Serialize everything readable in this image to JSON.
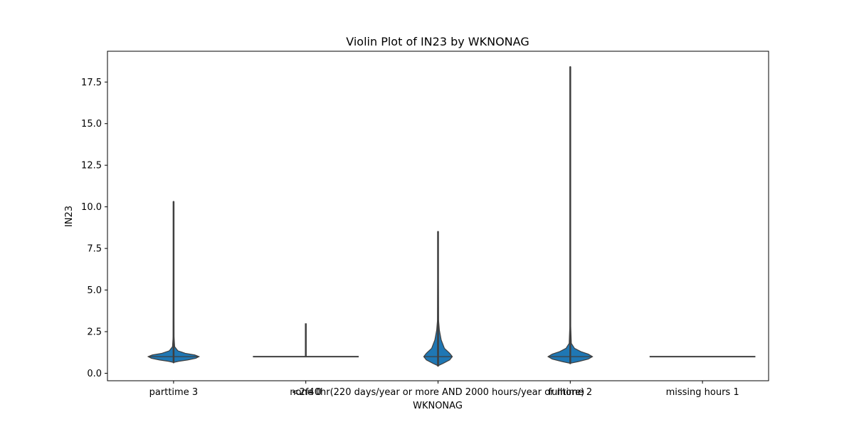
{
  "chart_data": {
    "type": "violin",
    "title": "Violin Plot of IN23 by WKNONAG",
    "xlabel": "WKNONAG",
    "ylabel": "IN23",
    "ylim": [
      -0.45,
      19.35
    ],
    "yticks": [
      0.0,
      2.5,
      5.0,
      7.5,
      10.0,
      12.5,
      15.0,
      17.5
    ],
    "ytick_labels": [
      "0.0",
      "2.5",
      "5.0",
      "7.5",
      "10.0",
      "12.5",
      "15.0",
      "17.5"
    ],
    "grid": false,
    "colors": {
      "fill": "#1f77b4",
      "line": "#3f3f3f"
    },
    "categories": [
      "parttime 3",
      "none 0",
      "<2f40hr(220 days/year or more AND 2000 hours/year or more)",
      "fulltime 2",
      "missing hours 1"
    ],
    "violins": [
      {
        "category": "parttime 3",
        "min": 0.65,
        "max": 10.3,
        "median": 1.0,
        "profile": [
          [
            0.65,
            0.0
          ],
          [
            0.72,
            0.1
          ],
          [
            0.8,
            0.27
          ],
          [
            0.9,
            0.42
          ],
          [
            1.0,
            0.48
          ],
          [
            1.1,
            0.4
          ],
          [
            1.2,
            0.22
          ],
          [
            1.35,
            0.08
          ],
          [
            1.6,
            0.02
          ],
          [
            2.2,
            0.008
          ],
          [
            10.3,
            0.0
          ]
        ]
      },
      {
        "category": "none 0",
        "min": 0.98,
        "max": 3.0,
        "median": 1.0,
        "flat": true,
        "flat_width": 1.0,
        "profile": [
          [
            0.98,
            1.0
          ],
          [
            1.02,
            1.0
          ],
          [
            1.05,
            0.02
          ],
          [
            3.0,
            0.0
          ]
        ]
      },
      {
        "category": "<2f40hr(220 days/year or more AND 2000 hours/year or more)",
        "min": 0.45,
        "max": 8.5,
        "median": 1.0,
        "profile": [
          [
            0.45,
            0.0
          ],
          [
            0.6,
            0.1
          ],
          [
            0.8,
            0.22
          ],
          [
            1.0,
            0.27
          ],
          [
            1.2,
            0.22
          ],
          [
            1.5,
            0.12
          ],
          [
            2.0,
            0.06
          ],
          [
            2.6,
            0.025
          ],
          [
            3.2,
            0.01
          ],
          [
            8.5,
            0.0
          ]
        ]
      },
      {
        "category": "fulltime 2",
        "min": 0.6,
        "max": 18.4,
        "median": 1.0,
        "profile": [
          [
            0.6,
            0.0
          ],
          [
            0.7,
            0.15
          ],
          [
            0.85,
            0.34
          ],
          [
            1.0,
            0.42
          ],
          [
            1.15,
            0.34
          ],
          [
            1.3,
            0.2
          ],
          [
            1.5,
            0.08
          ],
          [
            1.8,
            0.02
          ],
          [
            3.0,
            0.006
          ],
          [
            18.4,
            0.0
          ]
        ]
      },
      {
        "category": "missing hours 1",
        "min": 1.0,
        "max": 1.0,
        "median": 1.0,
        "flat": true,
        "flat_width": 1.0,
        "profile": []
      }
    ]
  }
}
